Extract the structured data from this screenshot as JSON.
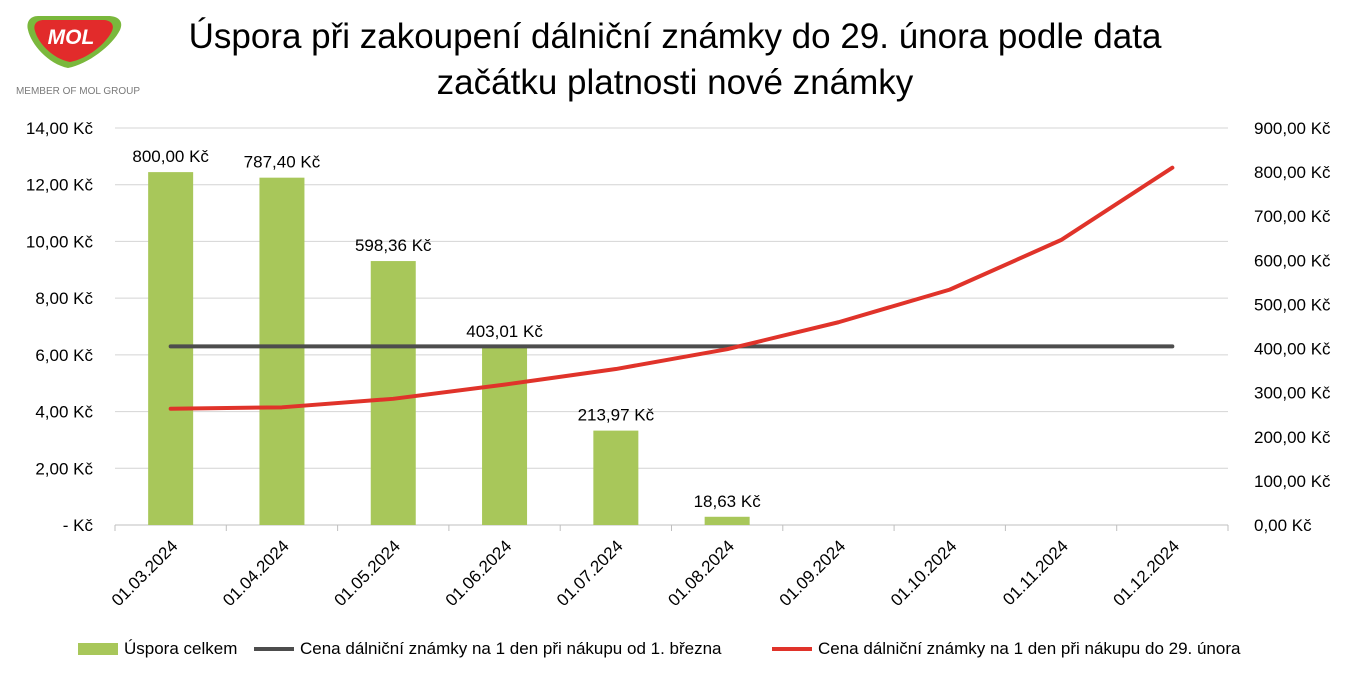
{
  "logo": {
    "brand_text": "MOL",
    "tagline": "MEMBER OF MOL GROUP"
  },
  "title": "Úspora při zakoupení dálniční známky do 29. února podle data začátku platnosti nové známky",
  "legend": {
    "bar_label": "Úspora celkem",
    "dark_line_label": "Cena dálniční známky na 1 den při nákupu od 1. března",
    "red_line_label": "Cena dálniční známky na 1 den při nákupu do 29. února"
  },
  "colors": {
    "bar": "#a8c75a",
    "dark_line": "#4d4d4d",
    "red_line": "#e0332a",
    "grid": "#d4d4d4",
    "logo_red": "#e22b2b",
    "logo_green": "#7ab83c"
  },
  "chart_data": {
    "type": "bar",
    "categories": [
      "01.03.2024",
      "01.04.2024",
      "01.05.2024",
      "01.06.2024",
      "01.07.2024",
      "01.08.2024",
      "01.09.2024",
      "01.10.2024",
      "01.11.2024",
      "01.12.2024"
    ],
    "left_axis": {
      "ylim": [
        0,
        14
      ],
      "ticks": [
        0,
        2,
        4,
        6,
        8,
        10,
        12,
        14
      ],
      "tick_labels": [
        "-   Kč",
        "2,00 Kč",
        "4,00 Kč",
        "6,00 Kč",
        "8,00 Kč",
        "10,00 Kč",
        "12,00 Kč",
        "14,00 Kč"
      ]
    },
    "right_axis": {
      "ylim": [
        0,
        900
      ],
      "ticks": [
        0,
        100,
        200,
        300,
        400,
        500,
        600,
        700,
        800,
        900
      ],
      "tick_labels": [
        "0,00 Kč",
        "100,00 Kč",
        "200,00 Kč",
        "300,00 Kč",
        "400,00 Kč",
        "500,00 Kč",
        "600,00 Kč",
        "700,00 Kč",
        "800,00 Kč",
        "900,00 Kč"
      ]
    },
    "grid": true,
    "legend_position": "bottom",
    "series": [
      {
        "name": "Úspora celkem",
        "kind": "bar",
        "axis": "right",
        "values": [
          800.0,
          787.4,
          598.36,
          403.01,
          213.97,
          18.63,
          0,
          0,
          0,
          0
        ],
        "data_labels": [
          "800,00 Kč",
          "787,40 Kč",
          "598,36 Kč",
          "403,01 Kč",
          "213,97 Kč",
          "18,63 Kč",
          "",
          "",
          "",
          ""
        ]
      },
      {
        "name": "Cena dálniční známky na 1 den při nákupu od 1. března",
        "kind": "line",
        "axis": "left",
        "values": [
          6.3,
          6.3,
          6.3,
          6.3,
          6.3,
          6.3,
          6.3,
          6.3,
          6.3,
          6.3
        ]
      },
      {
        "name": "Cena dálniční známky na 1 den při nákupu do 29. února",
        "kind": "line",
        "axis": "left",
        "values": [
          4.1,
          4.15,
          4.45,
          4.95,
          5.5,
          6.2,
          7.15,
          8.3,
          10.05,
          12.6
        ]
      }
    ]
  }
}
